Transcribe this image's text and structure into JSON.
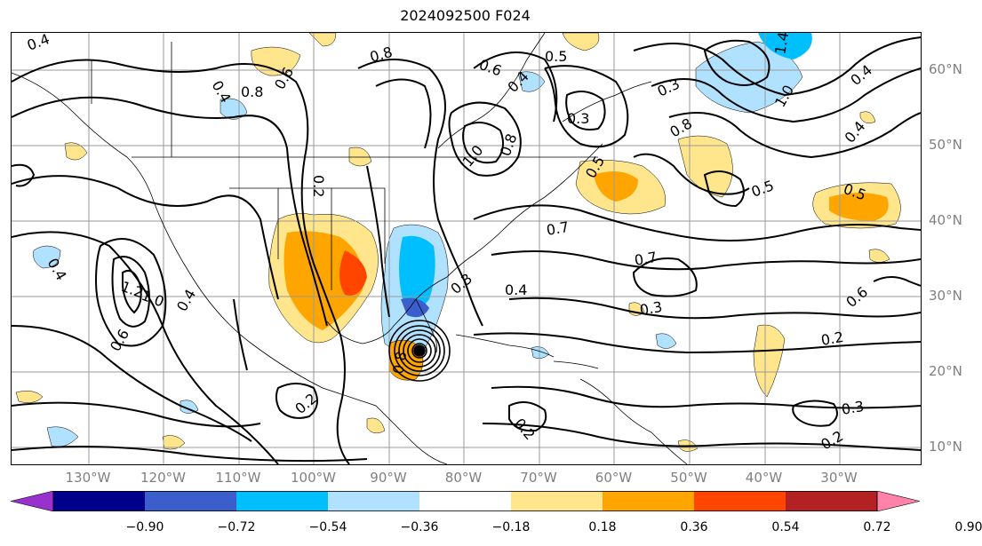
{
  "title": "2024092500 F024",
  "lat_labels": [
    {
      "text": "60°N",
      "lat": 60
    },
    {
      "text": "50°N",
      "lat": 50
    },
    {
      "text": "40°N",
      "lat": 40
    },
    {
      "text": "30°N",
      "lat": 30
    },
    {
      "text": "20°N",
      "lat": 20
    },
    {
      "text": "10°N",
      "lat": 10
    }
  ],
  "lon_labels": [
    {
      "text": "130°W",
      "lon": -130
    },
    {
      "text": "120°W",
      "lon": -120
    },
    {
      "text": "110°W",
      "lon": -110
    },
    {
      "text": "100°W",
      "lon": -100
    },
    {
      "text": "90°W",
      "lon": -90
    },
    {
      "text": "80°W",
      "lon": -80
    },
    {
      "text": "70°W",
      "lon": -70
    },
    {
      "text": "60°W",
      "lon": -60
    },
    {
      "text": "50°W",
      "lon": -50
    },
    {
      "text": "40°W",
      "lon": -40
    },
    {
      "text": "30°W",
      "lon": -30
    }
  ],
  "colorbar": {
    "ticks": [
      "−0.90",
      "−0.72",
      "−0.54",
      "−0.36",
      "−0.18",
      "0.18",
      "0.36",
      "0.54",
      "0.72",
      "0.90"
    ],
    "colors": [
      "#9932cc",
      "#00008b",
      "#3a5fcd",
      "#00bfff",
      "#b0e2ff",
      "#ffffff",
      "#ffe68c",
      "#ffa500",
      "#ff4500",
      "#b22222",
      "#ff82ab"
    ]
  },
  "contour_labels": [
    "0.4",
    "0.8",
    "0.6",
    "0.8",
    "0.5",
    "0.2",
    "0.3",
    "0.4",
    "1.0",
    "0.8",
    "0.5",
    "0.7",
    "0.7",
    "0.4",
    "0.3",
    "0.3",
    "0.2",
    "0.3",
    "0.2",
    "1.2",
    "1.0",
    "0.4",
    "0.6",
    "0.4",
    "0.4",
    "0.6",
    "0.3",
    "0.2",
    "0.2",
    "0.8",
    "0.8",
    "1.4",
    "0.6",
    "0.4",
    "0.5",
    "0.5",
    "0.4",
    "1.0"
  ]
}
